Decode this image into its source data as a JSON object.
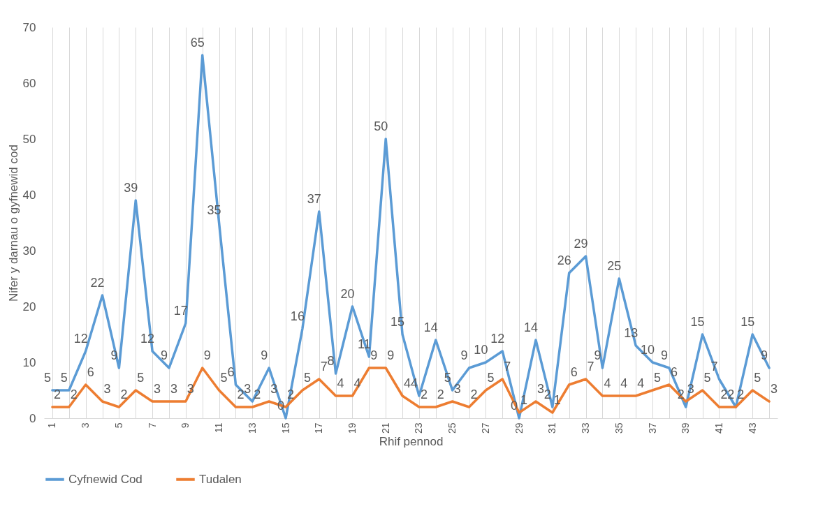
{
  "chart_data": {
    "type": "line",
    "xlabel": "Rhif pennod",
    "ylabel": "Nifer y darnau o gyfnewid cod",
    "categories": [
      "1",
      null,
      "3",
      null,
      "5",
      null,
      "7",
      null,
      "9",
      null,
      "11",
      null,
      "13",
      null,
      "15",
      null,
      "17",
      null,
      "19",
      null,
      "21",
      null,
      "23",
      null,
      "25",
      null,
      "27",
      null,
      "29",
      null,
      "31",
      null,
      "33",
      null,
      "35",
      null,
      "37",
      null,
      "39",
      null,
      "41",
      null,
      "43",
      null
    ],
    "series": [
      {
        "name": "Cyfnewid Cod",
        "color": "#5b9bd5",
        "values": [
          5,
          5,
          12,
          22,
          9,
          39,
          12,
          9,
          17,
          65,
          35,
          6,
          3,
          9,
          0,
          16,
          37,
          8,
          20,
          11,
          50,
          15,
          4,
          14,
          5,
          9,
          10,
          12,
          0,
          14,
          2,
          26,
          29,
          9,
          25,
          13,
          10,
          9,
          2,
          15,
          7,
          2,
          15,
          9
        ]
      },
      {
        "name": "Tudalen",
        "color": "#ed7d31",
        "values": [
          2,
          2,
          6,
          3,
          2,
          5,
          3,
          3,
          3,
          9,
          5,
          2,
          2,
          3,
          2,
          5,
          7,
          4,
          4,
          9,
          9,
          4,
          2,
          2,
          3,
          2,
          5,
          7,
          1,
          3,
          1,
          6,
          7,
          4,
          4,
          4,
          5,
          6,
          3,
          5,
          2,
          2,
          5,
          3
        ]
      }
    ],
    "ylim": [
      0,
      70
    ],
    "yticks": [
      0,
      10,
      20,
      30,
      40,
      50,
      60,
      70
    ],
    "grid": "x",
    "legend": "bottom",
    "data_labels": true,
    "marker": "none",
    "line_style": "solid"
  }
}
